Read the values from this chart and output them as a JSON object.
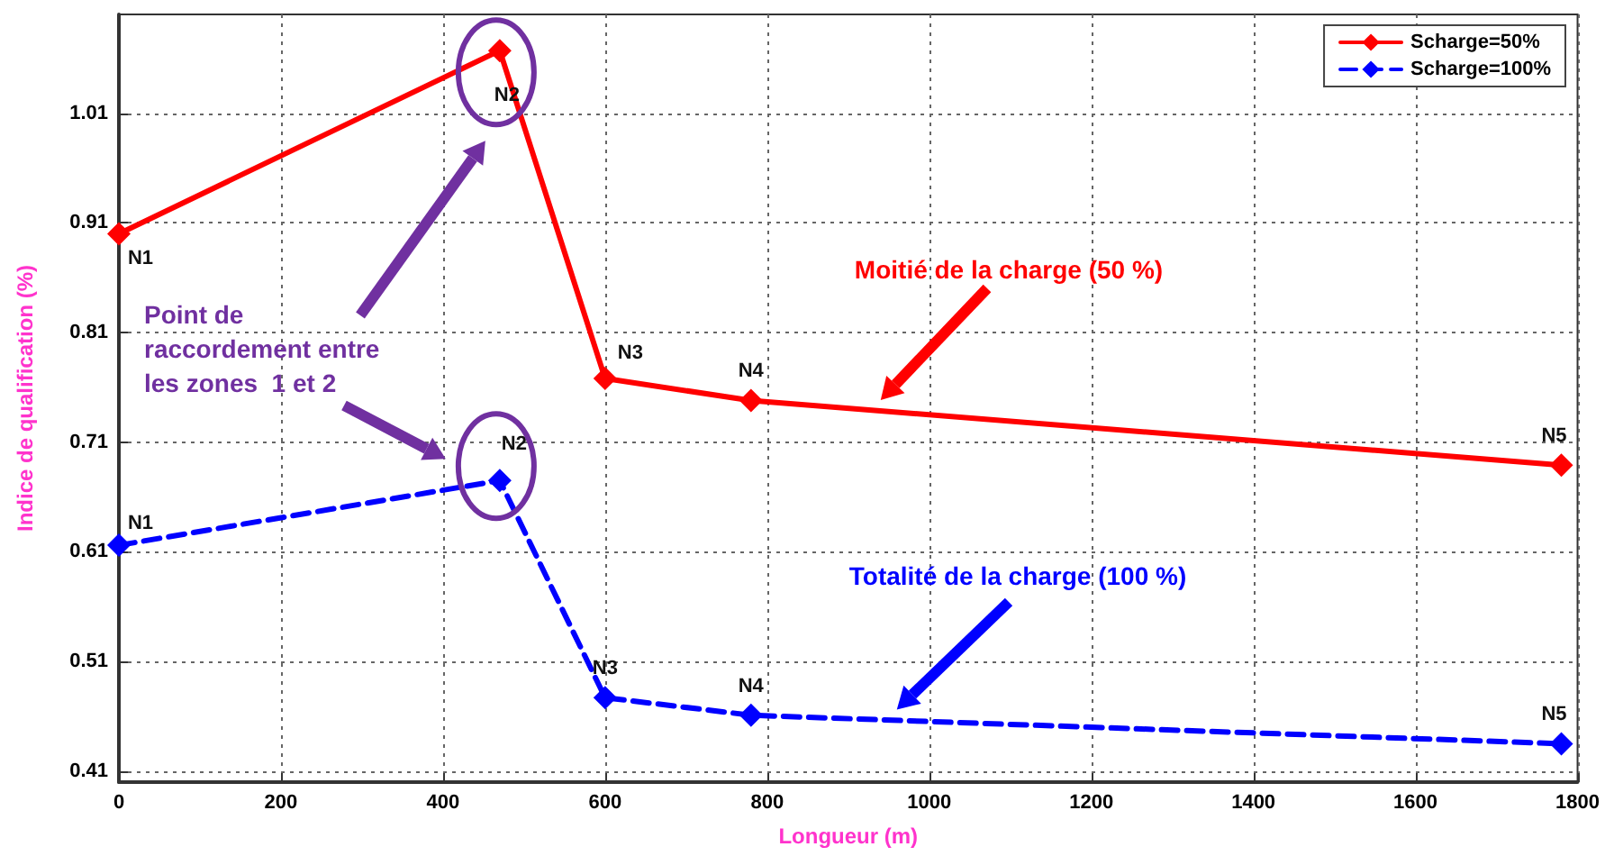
{
  "chart_data": {
    "type": "line",
    "xlabel": "Longueur (m)",
    "ylabel": "Indice de qualification (%)",
    "xlim": [
      0,
      1800
    ],
    "xticks": [
      0,
      200,
      400,
      600,
      800,
      1000,
      1200,
      1400,
      1600,
      1800
    ],
    "ylim": [
      0.4,
      1.1
    ],
    "yticks": [
      0.41,
      0.51,
      0.61,
      0.71,
      0.81,
      0.91,
      1.01
    ],
    "grid": true,
    "legend": "top right",
    "marker": "diamond",
    "series": [
      {
        "name": "Scharge=50%",
        "color": "#ff0000",
        "line_style": "solid",
        "x": [
          0,
          470,
          600,
          780,
          1780
        ],
        "values": [
          0.9,
          1.067,
          0.768,
          0.748,
          0.689
        ]
      },
      {
        "name": "Scharge=100%",
        "color": "#0000ff",
        "line_style": "dashed",
        "x": [
          0,
          470,
          600,
          780,
          1780
        ],
        "values": [
          0.616,
          0.675,
          0.477,
          0.461,
          0.435
        ]
      }
    ],
    "annotations": [
      {
        "text": "N1",
        "x": 0,
        "y": 0.9
      },
      {
        "text": "N2",
        "x": 470,
        "y": 1.067
      },
      {
        "text": "N3",
        "x": 600,
        "y": 0.768
      },
      {
        "text": "N4",
        "x": 780,
        "y": 0.748
      },
      {
        "text": "N5",
        "x": 1780,
        "y": 0.689
      },
      {
        "text": "N1",
        "x": 0,
        "y": 0.616
      },
      {
        "text": "N2",
        "x": 470,
        "y": 0.675
      },
      {
        "text": "N3",
        "x": 600,
        "y": 0.477
      },
      {
        "text": "N4",
        "x": 780,
        "y": 0.461
      },
      {
        "text": "N5",
        "x": 1780,
        "y": 0.435
      },
      "Point de\nraccordement entre\nles zones  1 et 2",
      "Moitié de la charge (50 %)",
      "Totalité de la charge (100 %)"
    ]
  }
}
